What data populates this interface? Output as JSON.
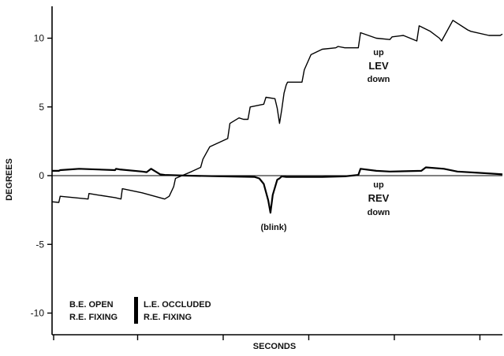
{
  "chart_data": {
    "type": "line",
    "title": "",
    "xlabel": "SECONDS",
    "ylabel": "DEGREES",
    "ylim": [
      -11.2,
      12.2
    ],
    "xlim": [
      0,
      100
    ],
    "yticks": [
      10,
      5,
      0,
      -5,
      -10
    ],
    "ytick_labels": [
      "10",
      "5",
      "0",
      "-5",
      "-10"
    ],
    "grid": false,
    "series": [
      {
        "name": "LEV",
        "x": [
          0,
          1.5,
          1.8,
          8,
          8.2,
          10,
          14,
          15.3,
          15.6,
          20,
          25,
          26,
          27,
          27.4,
          31,
          33,
          33.5,
          35,
          37,
          39,
          39.5,
          41.5,
          42.5,
          43.5,
          44,
          47,
          47.5,
          49.5,
          50,
          50.5,
          51,
          51.5,
          52,
          52.3,
          55.5,
          56,
          57.5,
          60,
          63,
          63.5,
          65,
          68,
          68.5,
          72,
          75,
          75.5,
          78,
          81,
          81.5,
          84,
          86,
          86.5,
          89,
          92.3,
          93,
          97,
          99.5,
          100
        ],
        "values": [
          -1.9,
          -1.95,
          -1.5,
          -1.7,
          -1.3,
          -1.4,
          -1.6,
          -1.7,
          -0.95,
          -1.25,
          -1.7,
          -1.5,
          -0.8,
          -0.2,
          0.3,
          0.6,
          1.2,
          2.1,
          2.4,
          2.7,
          3.8,
          4.2,
          4.1,
          4.1,
          5.0,
          5.2,
          5.7,
          5.6,
          4.9,
          3.8,
          4.8,
          6.0,
          6.6,
          6.8,
          6.8,
          7.7,
          8.8,
          9.2,
          9.3,
          9.4,
          9.3,
          9.3,
          10.4,
          10.0,
          9.9,
          10.1,
          10.2,
          9.8,
          10.9,
          10.5,
          10.0,
          9.8,
          11.3,
          10.6,
          10.5,
          10.2,
          10.2,
          10.3
        ]
      },
      {
        "name": "REV",
        "x": [
          0,
          1.5,
          1.8,
          4,
          6,
          14,
          14.2,
          15,
          20,
          21,
          22,
          24,
          25,
          30,
          38,
          45,
          46,
          47,
          48,
          48.5,
          49,
          50,
          50.5,
          51,
          52,
          60,
          65,
          68,
          68.5,
          72,
          75,
          82,
          83,
          87,
          90,
          95,
          100
        ],
        "values": [
          0.35,
          0.35,
          0.4,
          0.45,
          0.5,
          0.4,
          0.5,
          0.45,
          0.3,
          0.25,
          0.5,
          0.1,
          0.05,
          0.0,
          -0.05,
          -0.1,
          -0.2,
          -0.6,
          -1.8,
          -2.7,
          -1.4,
          -0.3,
          -0.2,
          -0.05,
          -0.1,
          -0.1,
          -0.05,
          0.05,
          0.5,
          0.35,
          0.3,
          0.35,
          0.6,
          0.5,
          0.3,
          0.2,
          0.1
        ]
      }
    ],
    "annotations": {
      "lev_up": "up",
      "lev_label": "LEV",
      "lev_down": "down",
      "rev_up": "up",
      "rev_label": "REV",
      "rev_down": "down",
      "blink": "(blink)",
      "cond_left_1": "B.E. OPEN",
      "cond_left_2": "R.E. FIXING",
      "cond_right_1": "L.E. OCCLUDED",
      "cond_right_2": "R.E. FIXING"
    }
  }
}
